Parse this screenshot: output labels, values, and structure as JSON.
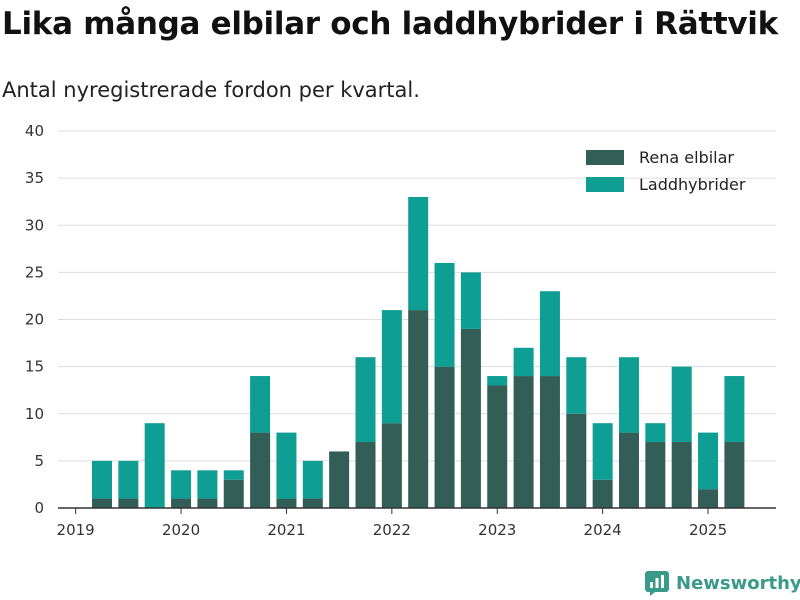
{
  "title": "Lika många elbilar och laddhybrider i Rättvik",
  "subtitle": "Antal nyregistrerade fordon per kvartal.",
  "brand": "Newsworthy",
  "colors": {
    "elbilar": "#335e57",
    "laddhybrider": "#0f9e94",
    "grid": "#dddddd",
    "axis": "#333333",
    "brand": "#3a9a8a"
  },
  "chart_data": {
    "type": "bar",
    "stacked": true,
    "categories": [
      "2019 Q2",
      "2019 Q3",
      "2019 Q4",
      "2020 Q1",
      "2020 Q2",
      "2020 Q3",
      "2020 Q4",
      "2021 Q1",
      "2021 Q2",
      "2021 Q3",
      "2021 Q4",
      "2022 Q1",
      "2022 Q2",
      "2022 Q3",
      "2022 Q4",
      "2023 Q1",
      "2023 Q2",
      "2023 Q3",
      "2023 Q4",
      "2024 Q1",
      "2024 Q2",
      "2024 Q3",
      "2024 Q4",
      "2025 Q1",
      "2025 Q2"
    ],
    "series": [
      {
        "name": "Rena elbilar",
        "color": "#335e57",
        "values": [
          1,
          1,
          0,
          1,
          1,
          3,
          8,
          1,
          1,
          6,
          7,
          9,
          21,
          15,
          19,
          13,
          14,
          14,
          10,
          3,
          8,
          7,
          7,
          2,
          7
        ]
      },
      {
        "name": "Laddhybrider",
        "color": "#0f9e94",
        "values": [
          4,
          4,
          9,
          3,
          3,
          1,
          6,
          7,
          4,
          0,
          9,
          12,
          12,
          11,
          6,
          1,
          3,
          9,
          6,
          6,
          8,
          2,
          8,
          6,
          7
        ]
      }
    ],
    "totals": [
      5,
      5,
      9,
      4,
      4,
      4,
      14,
      8,
      5,
      6,
      16,
      21,
      33,
      26,
      25,
      14,
      17,
      23,
      16,
      9,
      16,
      9,
      15,
      8,
      14
    ],
    "x_tick_labels": [
      "2019",
      "2020",
      "2021",
      "2022",
      "2023",
      "2024",
      "2025"
    ],
    "y_tick_labels": [
      "0",
      "5",
      "10",
      "15",
      "20",
      "25",
      "30",
      "35",
      "40"
    ],
    "ylim": [
      0,
      40
    ],
    "grid": true,
    "legend_position": "top-right"
  }
}
